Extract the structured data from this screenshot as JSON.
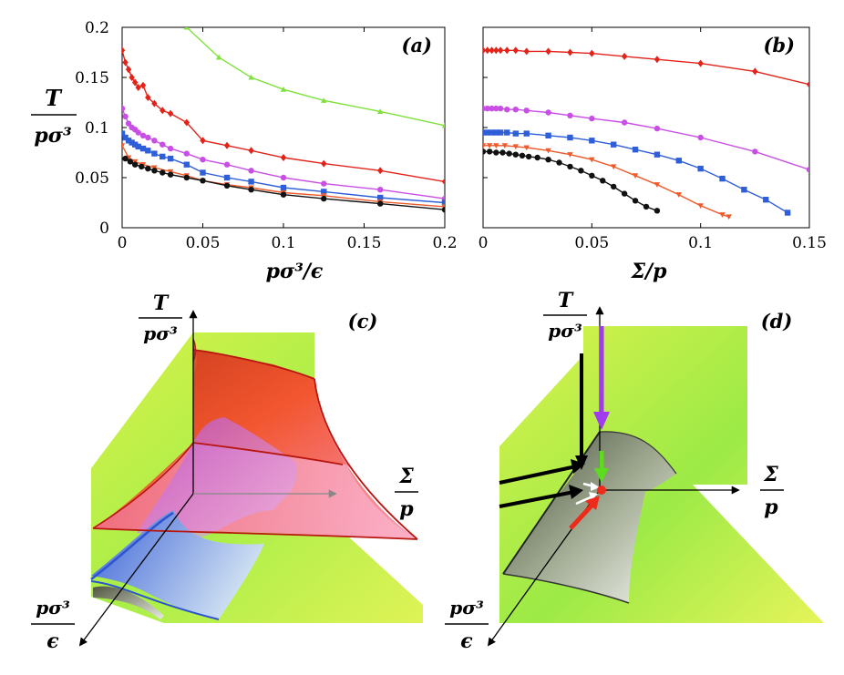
{
  "chart_data": [
    {
      "type": "line",
      "panel": "(a)",
      "xlabel": "pσ³/ϵ",
      "ylabel": "T / pσ³",
      "xlim": [
        0,
        0.2
      ],
      "ylim": [
        0,
        0.2
      ],
      "xticks": [
        "0",
        "0.05",
        "0.1",
        "0.15",
        "0.2"
      ],
      "yticks": [
        "0",
        "0.05",
        "0.1",
        "0.15",
        "0.2"
      ],
      "series": [
        {
          "name": "green",
          "color": "#7ee23a",
          "marker": "triangle",
          "x": [
            0.04,
            0.06,
            0.08,
            0.1,
            0.125,
            0.16,
            0.2
          ],
          "y": [
            0.2,
            0.17,
            0.15,
            0.138,
            0.127,
            0.116,
            0.102
          ]
        },
        {
          "name": "red",
          "color": "#e3231a",
          "marker": "diamond",
          "x": [
            0.0,
            0.002,
            0.004,
            0.006,
            0.008,
            0.01,
            0.013,
            0.016,
            0.02,
            0.025,
            0.03,
            0.04,
            0.05,
            0.065,
            0.08,
            0.1,
            0.125,
            0.16,
            0.2
          ],
          "y": [
            0.177,
            0.165,
            0.158,
            0.15,
            0.145,
            0.14,
            0.142,
            0.13,
            0.124,
            0.117,
            0.114,
            0.105,
            0.087,
            0.082,
            0.077,
            0.07,
            0.064,
            0.057,
            0.046
          ]
        },
        {
          "name": "magenta",
          "color": "#c94ee6",
          "marker": "circle",
          "x": [
            0.0,
            0.002,
            0.004,
            0.006,
            0.008,
            0.01,
            0.013,
            0.016,
            0.02,
            0.025,
            0.03,
            0.04,
            0.05,
            0.065,
            0.08,
            0.1,
            0.125,
            0.16,
            0.2
          ],
          "y": [
            0.119,
            0.111,
            0.104,
            0.1,
            0.098,
            0.095,
            0.092,
            0.09,
            0.087,
            0.083,
            0.079,
            0.074,
            0.068,
            0.063,
            0.057,
            0.05,
            0.044,
            0.038,
            0.029
          ]
        },
        {
          "name": "blue",
          "color": "#2f5fd8",
          "marker": "square",
          "x": [
            0.0,
            0.002,
            0.004,
            0.006,
            0.008,
            0.01,
            0.013,
            0.016,
            0.02,
            0.025,
            0.03,
            0.04,
            0.05,
            0.065,
            0.08,
            0.1,
            0.125,
            0.16,
            0.2
          ],
          "y": [
            0.094,
            0.09,
            0.087,
            0.085,
            0.083,
            0.081,
            0.079,
            0.077,
            0.074,
            0.071,
            0.069,
            0.063,
            0.055,
            0.05,
            0.046,
            0.04,
            0.036,
            0.03,
            0.025
          ]
        },
        {
          "name": "orange",
          "color": "#ee5a2b",
          "marker": "triangle-down",
          "x": [
            0.0,
            0.004,
            0.008,
            0.013,
            0.02,
            0.03,
            0.04,
            0.05,
            0.065,
            0.08,
            0.1,
            0.125,
            0.16,
            0.2
          ],
          "y": [
            0.082,
            0.07,
            0.066,
            0.063,
            0.06,
            0.056,
            0.052,
            0.047,
            0.043,
            0.04,
            0.035,
            0.032,
            0.026,
            0.021
          ]
        },
        {
          "name": "black",
          "color": "#111111",
          "marker": "circle",
          "x": [
            0.002,
            0.005,
            0.008,
            0.012,
            0.016,
            0.02,
            0.025,
            0.03,
            0.04,
            0.05,
            0.065,
            0.08,
            0.1,
            0.125,
            0.16,
            0.2
          ],
          "y": [
            0.069,
            0.066,
            0.063,
            0.061,
            0.059,
            0.057,
            0.055,
            0.053,
            0.05,
            0.047,
            0.042,
            0.038,
            0.033,
            0.029,
            0.024,
            0.018
          ]
        }
      ]
    },
    {
      "type": "line",
      "panel": "(b)",
      "xlabel": "Σ/p",
      "ylabel": "",
      "xlim": [
        0,
        0.15
      ],
      "ylim": [
        0,
        0.2
      ],
      "xticks": [
        "0",
        "0.05",
        "0.1",
        "0.15"
      ],
      "yticks": [],
      "series": [
        {
          "name": "red",
          "color": "#e3231a",
          "marker": "diamond",
          "x": [
            0.0,
            0.002,
            0.004,
            0.006,
            0.008,
            0.011,
            0.015,
            0.02,
            0.03,
            0.04,
            0.05,
            0.065,
            0.08,
            0.1,
            0.125,
            0.15
          ],
          "y": [
            0.177,
            0.177,
            0.177,
            0.177,
            0.177,
            0.177,
            0.177,
            0.176,
            0.176,
            0.175,
            0.174,
            0.171,
            0.168,
            0.164,
            0.156,
            0.143
          ]
        },
        {
          "name": "magenta",
          "color": "#c94ee6",
          "marker": "circle",
          "x": [
            0.0,
            0.002,
            0.004,
            0.006,
            0.008,
            0.011,
            0.015,
            0.02,
            0.03,
            0.04,
            0.05,
            0.065,
            0.08,
            0.1,
            0.125,
            0.15
          ],
          "y": [
            0.119,
            0.119,
            0.119,
            0.119,
            0.119,
            0.118,
            0.118,
            0.117,
            0.115,
            0.112,
            0.109,
            0.105,
            0.099,
            0.09,
            0.076,
            0.058
          ]
        },
        {
          "name": "blue",
          "color": "#2f5fd8",
          "marker": "square",
          "x": [
            0.0,
            0.002,
            0.004,
            0.006,
            0.008,
            0.011,
            0.015,
            0.02,
            0.03,
            0.04,
            0.05,
            0.06,
            0.07,
            0.08,
            0.09,
            0.1,
            0.11,
            0.12,
            0.13,
            0.14
          ],
          "y": [
            0.095,
            0.095,
            0.095,
            0.095,
            0.095,
            0.095,
            0.094,
            0.094,
            0.092,
            0.09,
            0.087,
            0.083,
            0.078,
            0.073,
            0.067,
            0.059,
            0.049,
            0.038,
            0.028,
            0.015
          ]
        },
        {
          "name": "orange",
          "color": "#ee5a2b",
          "marker": "triangle-down",
          "x": [
            0.0,
            0.003,
            0.006,
            0.01,
            0.015,
            0.02,
            0.03,
            0.04,
            0.05,
            0.06,
            0.07,
            0.08,
            0.09,
            0.1,
            0.11,
            0.113
          ],
          "y": [
            0.082,
            0.082,
            0.082,
            0.082,
            0.081,
            0.08,
            0.077,
            0.073,
            0.068,
            0.061,
            0.052,
            0.043,
            0.033,
            0.022,
            0.013,
            0.011
          ]
        },
        {
          "name": "black",
          "color": "#111111",
          "marker": "circle",
          "x": [
            0.0,
            0.003,
            0.006,
            0.009,
            0.012,
            0.015,
            0.018,
            0.021,
            0.025,
            0.03,
            0.035,
            0.04,
            0.045,
            0.05,
            0.055,
            0.06,
            0.065,
            0.07,
            0.075,
            0.08
          ],
          "y": [
            0.076,
            0.076,
            0.075,
            0.075,
            0.074,
            0.073,
            0.072,
            0.071,
            0.07,
            0.068,
            0.065,
            0.061,
            0.057,
            0.052,
            0.047,
            0.041,
            0.034,
            0.027,
            0.021,
            0.017
          ]
        }
      ]
    }
  ],
  "panels": {
    "a": {
      "tag": "(a)",
      "ylabel_num": "T",
      "ylabel_den": "pσ³",
      "xlabel": "pσ³/ϵ"
    },
    "b": {
      "tag": "(b)",
      "xlabel": "Σ/p"
    },
    "c": {
      "tag": "(c)",
      "axis_T_num": "T",
      "axis_T_den": "pσ³",
      "axis_S_num": "Σ",
      "axis_S_den": "p",
      "axis_e_num": "pσ³",
      "axis_e_den": "ϵ"
    },
    "d": {
      "tag": "(d)",
      "axis_T_num": "T",
      "axis_T_den": "pσ³",
      "axis_S_num": "Σ",
      "axis_S_den": "p",
      "axis_e_num": "pσ³",
      "axis_e_den": "ϵ"
    }
  },
  "colors": {
    "plane": "#b6ea3e",
    "red_surface": "#ef4b2f",
    "pink_surface": "#f57aa0",
    "blue_surface": "#3f6fe0",
    "arrow_purple": "#a23af0",
    "arrow_green": "#5bdc1c",
    "arrow_red": "#ee2a1a"
  }
}
